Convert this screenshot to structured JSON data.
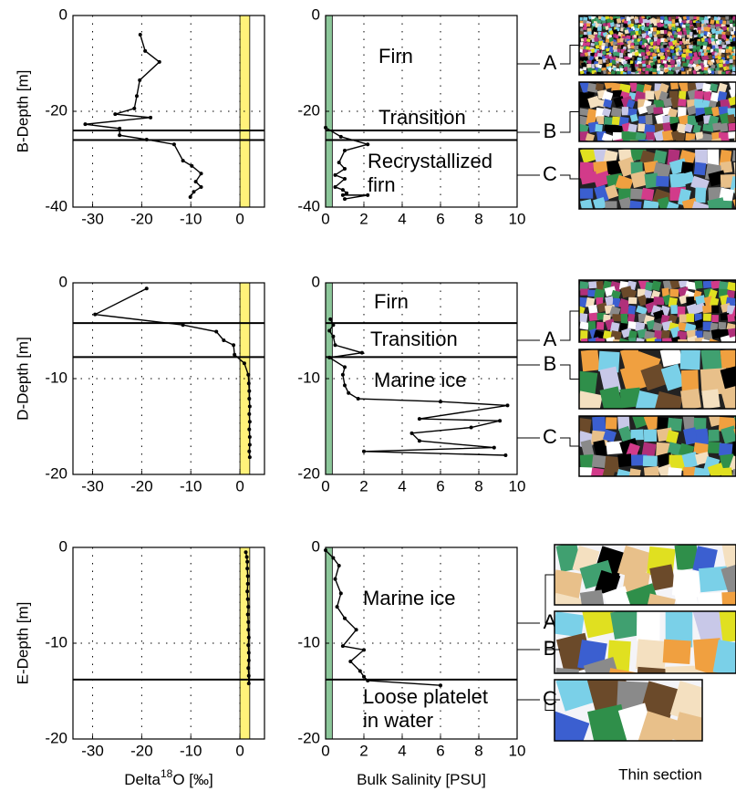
{
  "chart_data": [
    {
      "type": "line",
      "ylabel": "B-Depth [m]",
      "color": "#000000",
      "x": [
        -20.3,
        -19.3,
        -16.4,
        -20.4,
        -21,
        -21.5,
        -25.4,
        -18.2,
        -31.5,
        -24.5,
        -24.5,
        -19,
        -13.4,
        -11.6,
        -9.8,
        -7.9,
        -9,
        -7.9,
        -9.4,
        -10.1
      ],
      "values": [
        -4,
        -7.4,
        -9.7,
        -13.5,
        -16.8,
        -19.4,
        -20.6,
        -21.3,
        -22.7,
        -23.6,
        -25,
        -25.9,
        -26.9,
        -30.3,
        -31.4,
        -33,
        -34.7,
        -35.8,
        -36.8,
        -37.9
      ],
      "xlim": [
        -34,
        5
      ],
      "xticks": [
        -30,
        -20,
        -10,
        0
      ],
      "ylim": [
        -40,
        0
      ],
      "yticks": [
        -40,
        -20,
        0
      ],
      "grid": true,
      "band": {
        "range": [
          0,
          2
        ],
        "color": "#fff27a"
      },
      "hlines": [
        -24,
        -26
      ]
    },
    {
      "type": "line",
      "color": "#000000",
      "x": [
        0,
        0.8,
        2.2,
        1,
        0.7,
        1,
        0.5,
        1,
        0.5,
        0.9,
        1.1,
        0.9,
        2.2,
        1
      ],
      "values": [
        -23.4,
        -25.3,
        -26.9,
        -28.2,
        -30.7,
        -32,
        -33.3,
        -34.1,
        -35.8,
        -36.4,
        -37.1,
        -37.5,
        -37.5,
        -38.3
      ],
      "xlim": [
        0,
        10
      ],
      "xticks": [
        0,
        2,
        4,
        6,
        8,
        10
      ],
      "ylim": [
        -40,
        0
      ],
      "yticks": [
        -40,
        -20,
        0
      ],
      "grid": true,
      "band": {
        "range": [
          0,
          0.35
        ],
        "color": "#8cc79a"
      },
      "hlines": [
        -24,
        -26
      ],
      "annotations": [
        [
          "Firn"
        ],
        [
          "Transition"
        ],
        [
          "Recrystallized",
          "firn"
        ]
      ]
    },
    {
      "type": "line",
      "ylabel": "D-Depth [m]",
      "color": "#000000",
      "x": [
        -19,
        -29.5,
        -11.6,
        -4.8,
        -3.3,
        -1.3,
        -1.1,
        0.9,
        1.7,
        1.8,
        1.9,
        1.9,
        2,
        1.9,
        2,
        1.9,
        2,
        2,
        1.9,
        2
      ],
      "values": [
        -0.6,
        -3.3,
        -4.4,
        -5.1,
        -6,
        -6.5,
        -7.5,
        -8.4,
        -9.6,
        -10.5,
        -11.3,
        -12.1,
        -12.9,
        -13.7,
        -14.5,
        -15.3,
        -16.1,
        -16.9,
        -17.6,
        -18.2
      ],
      "xlim": [
        -34,
        5
      ],
      "xticks": [
        -30,
        -20,
        -10,
        0
      ],
      "ylim": [
        -20,
        0
      ],
      "yticks": [
        -20,
        -10,
        0
      ],
      "grid": true,
      "band": {
        "range": [
          0,
          2
        ],
        "color": "#fff27a"
      },
      "hlines": [
        -4.2,
        -7.75
      ]
    },
    {
      "type": "line",
      "color": "#000000",
      "x": [
        0.25,
        0.4,
        0.2,
        0.4,
        0.5,
        1.9,
        0.2,
        1,
        0.9,
        1,
        1.2,
        1.7,
        6,
        9.5,
        4.9,
        9.1,
        7.6,
        4.5,
        4.9,
        8.8,
        2,
        9.4
      ],
      "values": [
        -3.8,
        -4.4,
        -5,
        -5.6,
        -6.5,
        -7.3,
        -7.8,
        -8.8,
        -9.6,
        -10.7,
        -11.5,
        -12.1,
        -12.4,
        -12.8,
        -14.2,
        -14.4,
        -15.1,
        -15.7,
        -16.5,
        -17.2,
        -17.6,
        -18
      ],
      "xlim": [
        0,
        10
      ],
      "xticks": [
        0,
        2,
        4,
        6,
        8,
        10
      ],
      "ylim": [
        -20,
        0
      ],
      "yticks": [
        -20,
        -10,
        0
      ],
      "grid": true,
      "band": {
        "range": [
          0,
          0.35
        ],
        "color": "#8cc79a"
      },
      "hlines": [
        -4.2,
        -7.75
      ],
      "annotations": [
        [
          "Firn"
        ],
        [
          "Transition"
        ],
        [
          "Marine ice"
        ]
      ]
    },
    {
      "type": "line",
      "ylabel": "E-Depth [m]",
      "xlabel": [
        "Delta",
        "18",
        "O [‰]"
      ],
      "color": "#000000",
      "x": [
        1.2,
        1.4,
        1.5,
        1.5,
        1.6,
        1.6,
        1.5,
        1.6,
        1.7,
        1.6,
        1.7,
        1.7,
        1.8,
        1.7,
        1.8,
        1.8,
        1.7,
        1.8,
        1.8
      ],
      "values": [
        -0.5,
        -1,
        -1.5,
        -2.2,
        -3,
        -3.8,
        -4.6,
        -5.4,
        -6.2,
        -7,
        -7.8,
        -8.6,
        -9.4,
        -10.2,
        -11,
        -11.8,
        -12.6,
        -13.4,
        -14.2
      ],
      "xlim": [
        -34,
        5
      ],
      "xticks": [
        -30,
        -20,
        -10,
        0
      ],
      "ylim": [
        -20,
        0
      ],
      "yticks": [
        -20,
        -10,
        0
      ],
      "grid": true,
      "band": {
        "range": [
          0,
          2
        ],
        "color": "#fff27a"
      },
      "hlines": [
        -13.8
      ]
    },
    {
      "type": "line",
      "xlabel": [
        "Bulk Salinity [PSU]"
      ],
      "color": "#000000",
      "x": [
        0,
        0.4,
        0.7,
        0.5,
        0.8,
        0.6,
        1,
        1.6,
        0.9,
        2,
        1.3,
        1.8,
        2,
        2.2,
        6
      ],
      "values": [
        -0.3,
        -1.1,
        -1.9,
        -3.3,
        -4.8,
        -6.2,
        -7.4,
        -8.6,
        -10.3,
        -10.7,
        -11.9,
        -12.9,
        -13.5,
        -13.9,
        -14.4
      ],
      "xlim": [
        0,
        10
      ],
      "xticks": [
        0,
        2,
        4,
        6,
        8,
        10
      ],
      "ylim": [
        -20,
        0
      ],
      "yticks": [
        -20,
        -10,
        0
      ],
      "grid": true,
      "band": {
        "range": [
          0,
          0.35
        ],
        "color": "#8cc79a"
      },
      "hlines": [
        -13.8
      ],
      "annotations": [
        [
          "Marine ice"
        ],
        [
          "Loose platelet",
          "in water"
        ]
      ]
    }
  ],
  "thin_sections": [
    [
      "A",
      "B",
      "C"
    ],
    [
      "A",
      "B",
      "C"
    ],
    [
      "A",
      "B",
      "C"
    ]
  ],
  "thin_section_label": "Thin section"
}
